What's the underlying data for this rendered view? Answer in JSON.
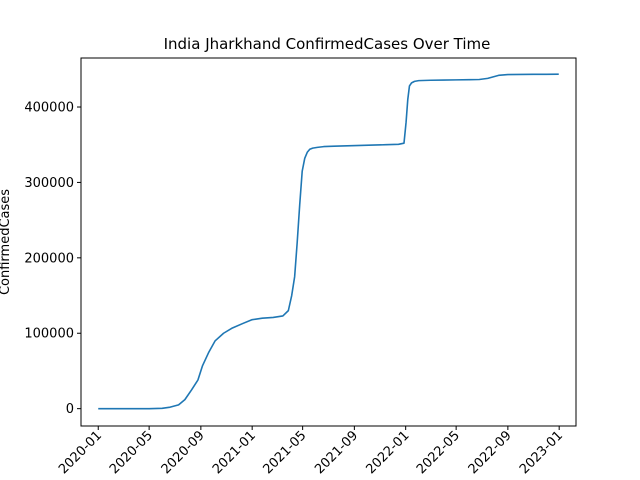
{
  "chart_data": {
    "type": "line",
    "title": "India Jharkhand ConfirmedCases Over Time",
    "xlabel": "",
    "ylabel": "ConfirmedCases",
    "ylim": [
      -23000,
      465000
    ],
    "xlim": [
      "2019-11-21",
      "2023-02-10"
    ],
    "grid": false,
    "legend": "none",
    "line_color": "#1f77b4",
    "y_ticks": [
      {
        "value": 0,
        "label": "0"
      },
      {
        "value": 100000,
        "label": "100000"
      },
      {
        "value": 200000,
        "label": "200000"
      },
      {
        "value": 300000,
        "label": "300000"
      },
      {
        "value": 400000,
        "label": "400000"
      }
    ],
    "x_ticks": [
      {
        "date": "2020-01-01",
        "label": "2020-01"
      },
      {
        "date": "2020-05-01",
        "label": "2020-05"
      },
      {
        "date": "2020-09-01",
        "label": "2020-09"
      },
      {
        "date": "2021-01-01",
        "label": "2021-01"
      },
      {
        "date": "2021-05-01",
        "label": "2021-05"
      },
      {
        "date": "2021-09-01",
        "label": "2021-09"
      },
      {
        "date": "2022-01-01",
        "label": "2022-01"
      },
      {
        "date": "2022-05-01",
        "label": "2022-05"
      },
      {
        "date": "2022-09-01",
        "label": "2022-09"
      },
      {
        "date": "2023-01-01",
        "label": "2023-01"
      }
    ],
    "series": [
      {
        "x": [
          "2020-01-01",
          "2020-03-15",
          "2020-05-01",
          "2020-06-01",
          "2020-06-20",
          "2020-07-10",
          "2020-07-25",
          "2020-08-10",
          "2020-08-25",
          "2020-09-05",
          "2020-09-20",
          "2020-10-05",
          "2020-10-25",
          "2020-11-15",
          "2020-12-10",
          "2021-01-01",
          "2021-01-25",
          "2021-02-20",
          "2021-03-15",
          "2021-03-28",
          "2021-04-05",
          "2021-04-12",
          "2021-04-18",
          "2021-04-24",
          "2021-04-30",
          "2021-05-06",
          "2021-05-12",
          "2021-05-18",
          "2021-05-25",
          "2021-06-05",
          "2021-06-20",
          "2021-07-15",
          "2021-08-15",
          "2021-09-15",
          "2021-10-15",
          "2021-11-15",
          "2021-12-15",
          "2021-12-28",
          "2022-01-02",
          "2022-01-06",
          "2022-01-10",
          "2022-01-15",
          "2022-01-22",
          "2022-02-01",
          "2022-03-01",
          "2022-04-01",
          "2022-05-01",
          "2022-06-01",
          "2022-06-25",
          "2022-07-15",
          "2022-08-10",
          "2022-09-01",
          "2022-10-01",
          "2022-11-01",
          "2022-12-01",
          "2022-12-31"
        ],
        "y": [
          0,
          0,
          0,
          500,
          2000,
          5000,
          12000,
          25000,
          38000,
          57000,
          75000,
          90000,
          100000,
          107000,
          113000,
          118000,
          120000,
          121000,
          123000,
          130000,
          150000,
          175000,
          220000,
          270000,
          315000,
          332000,
          340000,
          344000,
          345500,
          346500,
          347500,
          348000,
          348500,
          349000,
          349500,
          350000,
          350500,
          352000,
          380000,
          410000,
          428000,
          432000,
          434000,
          435000,
          435500,
          435800,
          436000,
          436200,
          436500,
          438000,
          442000,
          443000,
          443200,
          443300,
          443400,
          443500
        ]
      }
    ]
  }
}
